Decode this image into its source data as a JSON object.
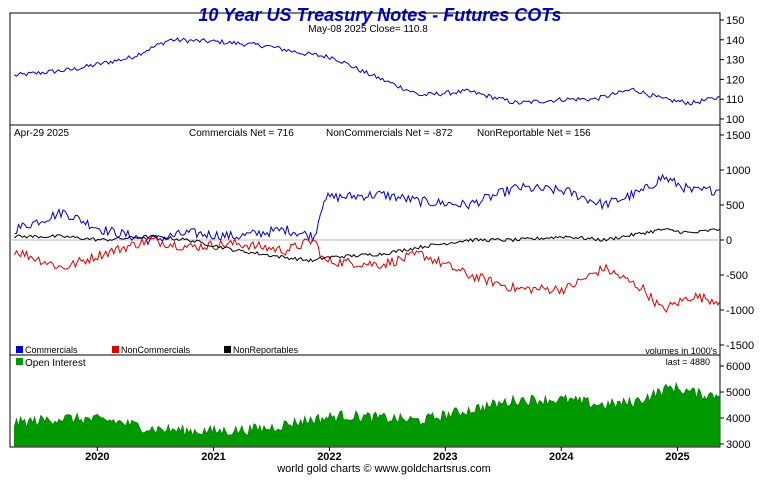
{
  "chart_data": [
    {
      "type": "line",
      "title": "10 Year US Treasury Notes - Futures COTs",
      "info": "May-08  2025   Close= 110.8",
      "ylim": [
        100,
        150
      ],
      "yticks": [
        100,
        110,
        120,
        130,
        140,
        150
      ],
      "grid": false,
      "x": [
        "2019-04",
        "2019-10",
        "2020-04",
        "2020-08",
        "2021-01",
        "2021-06",
        "2021-10",
        "2022-01",
        "2022-04",
        "2022-10",
        "2023-03",
        "2023-08",
        "2024-01",
        "2024-04",
        "2024-08",
        "2024-11",
        "2025-02",
        "2025-05"
      ],
      "series": [
        {
          "values": [
            122,
            125,
            131,
            140,
            139,
            137,
            133,
            131,
            124,
            112,
            114,
            108,
            110,
            110,
            115,
            110,
            108,
            111
          ],
          "color": "#0000cc"
        }
      ]
    },
    {
      "type": "line",
      "info": "Apr-29  2025",
      "stats": [
        "Commercials Net = 716",
        "NonCommercials Net = -872",
        "NonReportable Net = 156"
      ],
      "ylim": [
        -1500,
        1500
      ],
      "yticks": [
        -1500,
        -1000,
        -500,
        0,
        500,
        1000,
        1500
      ],
      "legend_position": "bottom-left",
      "note": "volumes in 1000's",
      "x": [
        "2019-04",
        "2019-09",
        "2020-01",
        "2020-06",
        "2020-10",
        "2021-03",
        "2021-08",
        "2021-11",
        "2021-12",
        "2022-06",
        "2022-10",
        "2023-03",
        "2023-08",
        "2024-01",
        "2024-05",
        "2024-09",
        "2024-11",
        "2025-02",
        "2025-05"
      ],
      "series": [
        {
          "name": "Commercials",
          "color": "#0000cc",
          "values": [
            150,
            400,
            150,
            0,
            100,
            50,
            150,
            50,
            600,
            650,
            550,
            500,
            750,
            700,
            500,
            700,
            900,
            700,
            716
          ]
        },
        {
          "name": "NonCommercials",
          "color": "#dd0000",
          "values": [
            -150,
            -400,
            -200,
            0,
            -100,
            -50,
            -150,
            0,
            -300,
            -350,
            -200,
            -500,
            -700,
            -700,
            -400,
            -700,
            -1000,
            -800,
            -872
          ]
        },
        {
          "name": "NonReportables",
          "color": "#000000",
          "values": [
            50,
            50,
            0,
            50,
            0,
            -150,
            -250,
            -300,
            -250,
            -200,
            -100,
            0,
            0,
            50,
            0,
            100,
            150,
            100,
            156
          ]
        }
      ]
    },
    {
      "type": "area",
      "ylim": [
        3000,
        6000
      ],
      "yticks": [
        3000,
        4000,
        5000,
        6000
      ],
      "legend_position": "top-left",
      "note": "last = 4880",
      "x": [
        "2019-04",
        "2019-09",
        "2020-02",
        "2020-06",
        "2020-10",
        "2021-02",
        "2021-06",
        "2021-10",
        "2022-02",
        "2022-06",
        "2022-10",
        "2023-03",
        "2023-08",
        "2024-01",
        "2024-05",
        "2024-08",
        "2024-12",
        "2025-03",
        "2025-05"
      ],
      "series": [
        {
          "name": "Open Interest",
          "color": "#009900",
          "values": [
            3800,
            4000,
            3900,
            3600,
            3500,
            3500,
            3600,
            3900,
            4100,
            4000,
            3900,
            4300,
            4700,
            4700,
            4500,
            4600,
            5200,
            4900,
            4880
          ]
        }
      ],
      "xticks": [
        "2020",
        "2021",
        "2022",
        "2023",
        "2024",
        "2025"
      ]
    }
  ],
  "footer": "world gold charts © www.goldchartsrus.com"
}
